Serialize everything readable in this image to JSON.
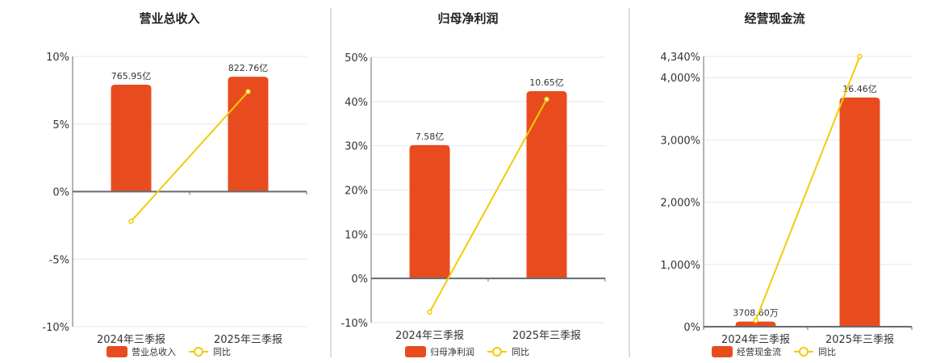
{
  "colors": {
    "bar": "#E84C1E",
    "line": "#F2CB05",
    "grid": "#E3E7F0",
    "axis": "#666A73",
    "divider": "#BBBBBB"
  },
  "chart_data": [
    {
      "type": "bar+line",
      "title": "营业总收入",
      "categories": [
        "2024年三季报",
        "2025年三季报"
      ],
      "bar_series": {
        "name": "营业总收入",
        "values": [
          765.95,
          822.76
        ],
        "labels": [
          "765.95亿",
          "822.76亿"
        ],
        "unit": "亿"
      },
      "line_series": {
        "name": "同比",
        "values": [
          -2.2,
          7.4
        ],
        "unit": "%"
      },
      "y_ticks": [
        "10%",
        "5%",
        "0%",
        "-5%",
        "-10%"
      ],
      "y_tick_values": [
        10,
        5,
        0,
        -5,
        -10
      ],
      "ylim": [
        -10,
        10
      ],
      "grid": true,
      "legend": "bottom"
    },
    {
      "type": "bar+line",
      "title": "归母净利润",
      "categories": [
        "2024年三季报",
        "2025年三季报"
      ],
      "bar_series": {
        "name": "归母净利润",
        "values": [
          7.58,
          10.65
        ],
        "labels": [
          "7.58亿",
          "10.65亿"
        ],
        "unit": "亿"
      },
      "line_series": {
        "name": "同比",
        "values": [
          -7.6,
          40.5
        ],
        "unit": "%"
      },
      "y_ticks": [
        "50%",
        "40%",
        "30%",
        "20%",
        "10%",
        "0%",
        "-10%"
      ],
      "y_tick_values": [
        50,
        40,
        30,
        20,
        10,
        0,
        -10
      ],
      "ylim": [
        -10,
        50
      ],
      "grid": true,
      "legend": "bottom"
    },
    {
      "type": "bar+line",
      "title": "经营现金流",
      "categories": [
        "2024年三季报",
        "2025年三季报"
      ],
      "bar_series": {
        "name": "经营现金流",
        "values": [
          0.37086,
          16.46
        ],
        "labels": [
          "3708.60万",
          "16.46亿"
        ],
        "unit": "亿"
      },
      "line_series": {
        "name": "同比",
        "values": [
          100,
          4340
        ],
        "unit": "%"
      },
      "y_ticks": [
        "4,340%",
        "4,000%",
        "3,000%",
        "2,000%",
        "1,000%",
        "0%"
      ],
      "y_tick_values": [
        4340,
        4000,
        3000,
        2000,
        1000,
        0
      ],
      "ylim": [
        0,
        4340
      ],
      "grid": true,
      "legend": "bottom"
    }
  ]
}
